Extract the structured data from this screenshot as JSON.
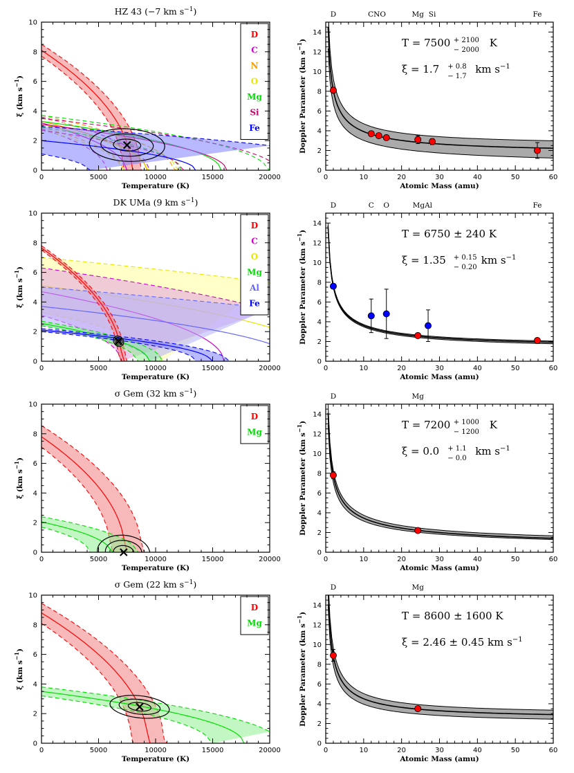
{
  "chart_data": [
    {
      "type": "line",
      "id": "p1L",
      "title": "HZ 43 (−7 km s",
      "title_sup": "−1",
      "title_end": ")",
      "xlabel": "Temperature (K)",
      "ylabel": "ξ (km s",
      "ylabel_sup": "−1",
      "ylabel_end": ")",
      "xlim": [
        0,
        20000
      ],
      "ylim": [
        0,
        10
      ],
      "xticks": [
        0,
        5000,
        10000,
        15000,
        20000
      ],
      "yticks": [
        0,
        2,
        4,
        6,
        8,
        10
      ],
      "legend": [
        {
          "label": "D",
          "color": "#ff0000"
        },
        {
          "label": "C",
          "color": "#cc00cc"
        },
        {
          "label": "N",
          "color": "#ff9900"
        },
        {
          "label": "O",
          "color": "#e6e600"
        },
        {
          "label": "Mg",
          "color": "#00dd00"
        },
        {
          "label": "Si",
          "color": "#cc0066"
        },
        {
          "label": "Fe",
          "color": "#0000ff"
        }
      ],
      "series": [
        {
          "color": "#ff0000",
          "fill": "#f08080",
          "mass": 2,
          "xi0": [
            8.1,
            8.5,
            7.7
          ]
        },
        {
          "color": "#cc00cc",
          "mass": 12,
          "xi0": [
            3.2,
            3.6,
            2.8
          ]
        },
        {
          "color": "#ff9900",
          "mass": 14,
          "xi0": [
            3.3,
            3.7,
            2.9
          ]
        },
        {
          "color": "#e6e600",
          "mass": 16,
          "xi0": [
            3.1,
            3.5,
            2.7
          ]
        },
        {
          "color": "#00dd00",
          "mass": 24,
          "xi0": [
            3.3,
            3.7,
            2.9
          ]
        },
        {
          "color": "#cc0066",
          "mass": 28,
          "xi0": [
            3.1,
            3.5,
            2.7
          ]
        },
        {
          "color": "#0000ff",
          "fill": "#8080ff",
          "mass": 56,
          "xi0": [
            2.0,
            2.95,
            1.1
          ]
        }
      ],
      "best_fit": {
        "T": 7500,
        "xi": 1.7
      },
      "contours": [
        {
          "rx": 3300,
          "ry": 1.1,
          "rot": -0.1
        },
        {
          "rx": 2300,
          "ry": 0.75,
          "rot": -0.1
        },
        {
          "rx": 1200,
          "ry": 0.4,
          "rot": -0.1
        }
      ]
    },
    {
      "type": "scatter",
      "id": "p1R",
      "xlabel": "Atomic Mass (amu)",
      "ylabel": "Doppler Parameter (km s",
      "ylabel_sup": "−1",
      "ylabel_end": ")",
      "xlim": [
        0,
        60
      ],
      "ylim": [
        0,
        15
      ],
      "xticks": [
        0,
        10,
        20,
        30,
        40,
        50,
        60
      ],
      "yticks": [
        0,
        2,
        4,
        6,
        8,
        10,
        12,
        14
      ],
      "element_labels": [
        {
          "label": "D",
          "x": 2
        },
        {
          "label": "CNO",
          "x": 13.5
        },
        {
          "label": "Mg",
          "x": 24.3
        },
        {
          "label": "Si",
          "x": 28.1
        },
        {
          "label": "Fe",
          "x": 55.8
        }
      ],
      "annotation": {
        "T_text": "T = 7500",
        "T_plus": "+ 2100",
        "T_minus": "− 2000",
        "T_unit": "K",
        "xi_text": "ξ = 1.7",
        "xi_plus": "+ 0.8",
        "xi_minus": "− 1.7",
        "xi_unit": "km s",
        "xi_unit_sup": "−1"
      },
      "curve": {
        "T": 7500,
        "xi": 1.7,
        "T_lo": 5500,
        "xi_lo": 0.0,
        "T_hi": 9600,
        "xi_hi": 2.5
      },
      "points": [
        {
          "x": 2,
          "y": 8.1,
          "err": 0.3,
          "color": "#ff0000"
        },
        {
          "x": 12,
          "y": 3.7,
          "err": 0.2,
          "color": "#ff0000"
        },
        {
          "x": 14,
          "y": 3.5,
          "err": 0.2,
          "color": "#ff0000"
        },
        {
          "x": 16,
          "y": 3.3,
          "err": 0.2,
          "color": "#ff0000"
        },
        {
          "x": 24.3,
          "y": 3.1,
          "err": 0.4,
          "color": "#ff0000"
        },
        {
          "x": 28.1,
          "y": 2.9,
          "err": 0.3,
          "color": "#ff0000"
        },
        {
          "x": 55.8,
          "y": 2.0,
          "err": 0.8,
          "color": "#ff0000"
        }
      ]
    },
    {
      "type": "line",
      "id": "p2L",
      "title": "DK UMa (9 km s",
      "title_sup": "−1",
      "title_end": ")",
      "xlabel": "Temperature (K)",
      "ylabel": "ξ (km s",
      "ylabel_sup": "−1",
      "ylabel_end": ")",
      "xlim": [
        0,
        20000
      ],
      "ylim": [
        0,
        10
      ],
      "xticks": [
        0,
        5000,
        10000,
        15000,
        20000
      ],
      "yticks": [
        0,
        2,
        4,
        6,
        8,
        10
      ],
      "legend": [
        {
          "label": "D",
          "color": "#ff0000"
        },
        {
          "label": "C",
          "color": "#cc00cc"
        },
        {
          "label": "O",
          "color": "#e6e600"
        },
        {
          "label": "Mg",
          "color": "#00dd00"
        },
        {
          "label": "Al",
          "color": "#6666ff"
        },
        {
          "label": "Fe",
          "color": "#0000ff"
        }
      ],
      "series": [
        {
          "color": "#e6e600",
          "fill": "#ffff99",
          "mass": 16,
          "xi0": [
            5.1,
            7.0,
            3.3
          ]
        },
        {
          "color": "#cc00cc",
          "fill": "#e0a0e0",
          "mass": 12,
          "xi0": [
            4.7,
            6.3,
            3.1
          ]
        },
        {
          "color": "#6666ff",
          "fill": "#b0b0ff",
          "mass": 27,
          "xi0": [
            3.7,
            5.0,
            2.4
          ]
        },
        {
          "color": "#ff0000",
          "fill": "#f08080",
          "mass": 2,
          "xi0": [
            7.65,
            7.8,
            7.5
          ]
        },
        {
          "color": "#00dd00",
          "fill": "#90ee90",
          "mass": 24,
          "xi0": [
            2.55,
            2.7,
            2.4
          ]
        },
        {
          "color": "#0000ff",
          "fill": "#8080ff",
          "mass": 56,
          "xi0": [
            2.1,
            2.2,
            2.0
          ]
        }
      ],
      "best_fit": {
        "T": 6750,
        "xi": 1.35
      },
      "contours": [
        {
          "rx": 450,
          "ry": 0.35,
          "rot": -0.5
        },
        {
          "rx": 320,
          "ry": 0.25,
          "rot": -0.5
        },
        {
          "rx": 180,
          "ry": 0.14,
          "rot": -0.5
        }
      ]
    },
    {
      "type": "scatter",
      "id": "p2R",
      "xlabel": "Atomic Mass (amu)",
      "ylabel": "Doppler Parameter (km s",
      "ylabel_sup": "−1",
      "ylabel_end": ")",
      "xlim": [
        0,
        60
      ],
      "ylim": [
        0,
        15
      ],
      "xticks": [
        0,
        10,
        20,
        30,
        40,
        50,
        60
      ],
      "yticks": [
        0,
        2,
        4,
        6,
        8,
        10,
        12,
        14
      ],
      "element_labels": [
        {
          "label": "D",
          "x": 2
        },
        {
          "label": "C",
          "x": 12
        },
        {
          "label": "O",
          "x": 16
        },
        {
          "label": "MgAl",
          "x": 25.5
        },
        {
          "label": "Fe",
          "x": 55.8
        }
      ],
      "annotation": {
        "T_text": "T = 6750 ± 240 K",
        "xi_text": "ξ = 1.35",
        "xi_plus": "+ 0.15",
        "xi_minus": "− 0.20",
        "xi_unit": "km s",
        "xi_unit_sup": "−1"
      },
      "curve": {
        "T": 6750,
        "xi": 1.35,
        "T_lo": 6510,
        "xi_lo": 1.15,
        "T_hi": 6990,
        "xi_hi": 1.5
      },
      "points": [
        {
          "x": 2,
          "y": 7.6,
          "err": 0.2,
          "color": "#0000ff"
        },
        {
          "x": 12,
          "y": 4.6,
          "err": 1.7,
          "color": "#0000ff"
        },
        {
          "x": 16,
          "y": 4.8,
          "err": 2.5,
          "color": "#0000ff"
        },
        {
          "x": 24.3,
          "y": 2.6,
          "err": 0.2,
          "color": "#ff0000"
        },
        {
          "x": 27,
          "y": 3.6,
          "err": 1.6,
          "color": "#0000ff"
        },
        {
          "x": 55.8,
          "y": 2.1,
          "err": 0.2,
          "color": "#ff0000"
        }
      ]
    },
    {
      "type": "line",
      "id": "p3L",
      "title": "σ Gem (32 km s",
      "title_sup": "−1",
      "title_end": ")",
      "xlabel": "Temperature (K)",
      "ylabel": "ξ (km s",
      "ylabel_sup": "−1",
      "ylabel_end": ")",
      "xlim": [
        0,
        20000
      ],
      "ylim": [
        0,
        10
      ],
      "xticks": [
        0,
        5000,
        10000,
        15000,
        20000
      ],
      "yticks": [
        0,
        2,
        4,
        6,
        8,
        10
      ],
      "legend": [
        {
          "label": "D",
          "color": "#ff0000"
        },
        {
          "label": "Mg",
          "color": "#00dd00"
        }
      ],
      "series": [
        {
          "color": "#ff0000",
          "fill": "#f08080",
          "mass": 2,
          "xi0": [
            7.8,
            8.55,
            7.1
          ]
        },
        {
          "color": "#00dd00",
          "fill": "#90ee90",
          "mass": 24,
          "xi0": [
            2.05,
            2.4,
            1.7
          ]
        }
      ],
      "best_fit": {
        "T": 7200,
        "xi": 0.0
      },
      "contours": [
        {
          "rx": 2300,
          "ry": 1.15,
          "rot": -0.15
        },
        {
          "rx": 1600,
          "ry": 0.8,
          "rot": -0.15
        },
        {
          "rx": 900,
          "ry": 0.45,
          "rot": -0.15
        }
      ]
    },
    {
      "type": "scatter",
      "id": "p3R",
      "xlabel": "Atomic Mass (amu)",
      "ylabel": "Doppler Parameter (km s",
      "ylabel_sup": "−1",
      "ylabel_end": ")",
      "xlim": [
        0,
        60
      ],
      "ylim": [
        0,
        15
      ],
      "xticks": [
        0,
        10,
        20,
        30,
        40,
        50,
        60
      ],
      "yticks": [
        0,
        2,
        4,
        6,
        8,
        10,
        12,
        14
      ],
      "element_labels": [
        {
          "label": "D",
          "x": 2
        },
        {
          "label": "Mg",
          "x": 24.3
        }
      ],
      "annotation": {
        "T_text": "T = 7200",
        "T_plus": "+ 1000",
        "T_minus": "− 1200",
        "T_unit": "K",
        "xi_text": "ξ = 0.0",
        "xi_plus": "+ 1.1",
        "xi_minus": "− 0.0",
        "xi_unit": "km s",
        "xi_unit_sup": "−1"
      },
      "curve": {
        "T": 7200,
        "xi": 0.0,
        "T_lo": 6000,
        "xi_lo": 0.0,
        "T_hi": 8200,
        "xi_hi": 0.7
      },
      "points": [
        {
          "x": 2,
          "y": 7.8,
          "err": 0.35,
          "color": "#ff0000"
        },
        {
          "x": 24.3,
          "y": 2.2,
          "err": 0.15,
          "color": "#ff0000"
        }
      ]
    },
    {
      "type": "line",
      "id": "p4L",
      "title": "σ Gem (22 km s",
      "title_sup": "−1",
      "title_end": ")",
      "xlabel": "Temperature (K)",
      "ylabel": "ξ (km s",
      "ylabel_sup": "−1",
      "ylabel_end": ")",
      "xlim": [
        0,
        20000
      ],
      "ylim": [
        0,
        10
      ],
      "xticks": [
        0,
        5000,
        10000,
        15000,
        20000
      ],
      "yticks": [
        0,
        2,
        4,
        6,
        8,
        10
      ],
      "legend": [
        {
          "label": "D",
          "color": "#ff0000"
        },
        {
          "label": "Mg",
          "color": "#00dd00"
        }
      ],
      "series": [
        {
          "color": "#ff0000",
          "fill": "#f08080",
          "mass": 2,
          "xi0": [
            8.8,
            9.45,
            8.1
          ]
        },
        {
          "color": "#00dd00",
          "fill": "#90ee90",
          "mass": 24,
          "xi0": [
            3.5,
            3.8,
            3.2
          ]
        }
      ],
      "best_fit": {
        "T": 8600,
        "xi": 2.46
      },
      "contours": [
        {
          "rx": 2600,
          "ry": 0.75,
          "rot": -0.25
        },
        {
          "rx": 1800,
          "ry": 0.5,
          "rot": -0.25
        },
        {
          "rx": 1000,
          "ry": 0.28,
          "rot": -0.25
        }
      ]
    },
    {
      "type": "scatter",
      "id": "p4R",
      "xlabel": "Atomic Mass (amu)",
      "ylabel": "Doppler Parameter (km s",
      "ylabel_sup": "−1",
      "ylabel_end": ")",
      "xlim": [
        0,
        60
      ],
      "ylim": [
        0,
        15
      ],
      "xticks": [
        0,
        10,
        20,
        30,
        40,
        50,
        60
      ],
      "yticks": [
        0,
        2,
        4,
        6,
        8,
        10,
        12,
        14
      ],
      "element_labels": [
        {
          "label": "D",
          "x": 2
        },
        {
          "label": "Mg",
          "x": 24.3
        }
      ],
      "annotation": {
        "T_text": "T = 8600 ± 1600 K",
        "xi_text": "ξ = 2.46 ± 0.45 km s",
        "xi_text_sup": "−1"
      },
      "curve": {
        "T": 8600,
        "xi": 2.46,
        "T_lo": 7000,
        "xi_lo": 2.0,
        "T_hi": 10200,
        "xi_hi": 2.9
      },
      "points": [
        {
          "x": 2,
          "y": 8.9,
          "err": 0.6,
          "color": "#ff0000"
        },
        {
          "x": 24.3,
          "y": 3.5,
          "err": 0.15,
          "color": "#ff0000"
        }
      ]
    }
  ]
}
